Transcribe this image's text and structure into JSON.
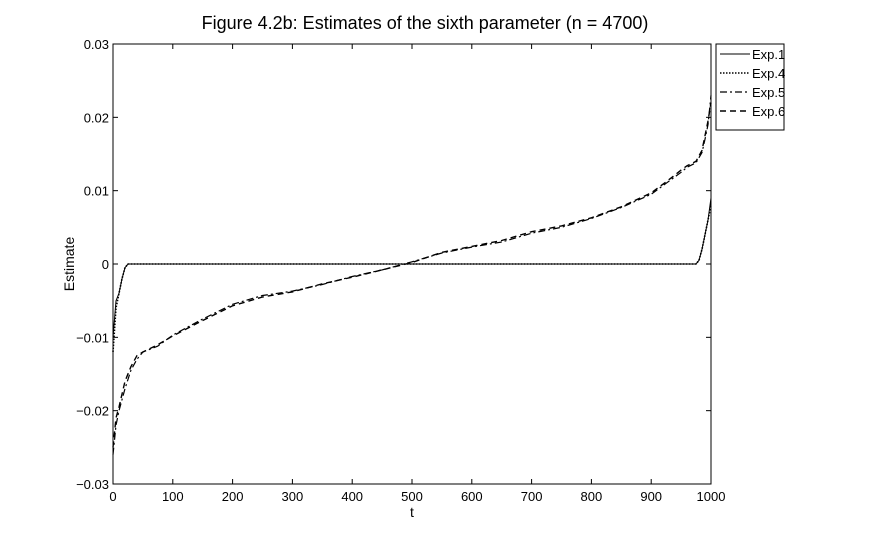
{
  "chart_data": {
    "type": "line",
    "title": "Figure 4.2b: Estimates of the sixth parameter (n = 4700)",
    "xlabel": "t",
    "ylabel": "Estimate",
    "xlim": [
      0,
      1000
    ],
    "ylim": [
      -0.03,
      0.03
    ],
    "xticks": [
      0,
      100,
      200,
      300,
      400,
      500,
      600,
      700,
      800,
      900,
      1000
    ],
    "xtick_labels": [
      "0",
      "100",
      "200",
      "300",
      "400",
      "500",
      "600",
      "700",
      "800",
      "900",
      "1000"
    ],
    "yticks": [
      -0.03,
      -0.02,
      -0.01,
      0,
      0.01,
      0.02,
      0.03
    ],
    "ytick_labels": [
      "−0.03",
      "−0.02",
      "−0.01",
      "0",
      "0.01",
      "0.02",
      "0.03"
    ],
    "grid": false,
    "legend_position": "outside-top-right",
    "series": [
      {
        "name": "Exp.1",
        "style": "solid",
        "x": [
          0,
          5,
          10,
          15,
          20,
          25,
          975,
          980,
          985,
          990,
          995,
          1000
        ],
        "y": [
          -0.01,
          -0.005,
          -0.004,
          -0.002,
          -0.0005,
          0,
          0,
          0.0005,
          0.002,
          0.004,
          0.006,
          0.009
        ]
      },
      {
        "name": "Exp.4",
        "style": "dotted",
        "x": [
          0,
          5,
          10,
          15,
          20,
          25,
          975,
          980,
          985,
          990,
          995,
          1000
        ],
        "y": [
          -0.012,
          -0.006,
          -0.004,
          -0.002,
          -0.0005,
          0,
          0,
          0.0005,
          0.002,
          0.004,
          0.006,
          0.008
        ]
      },
      {
        "name": "Exp.5",
        "style": "dashdot",
        "x": [
          0,
          5,
          10,
          20,
          30,
          40,
          50,
          75,
          100,
          150,
          200,
          250,
          300,
          350,
          400,
          450,
          500,
          550,
          600,
          650,
          700,
          750,
          800,
          850,
          900,
          925,
          950,
          960,
          975,
          985,
          990,
          995,
          1000
        ],
        "y": [
          -0.026,
          -0.022,
          -0.02,
          -0.017,
          -0.0145,
          -0.013,
          -0.012,
          -0.0112,
          -0.0097,
          -0.0075,
          -0.0055,
          -0.0043,
          -0.0037,
          -0.0028,
          -0.0017,
          -0.0008,
          0.0003,
          0.0015,
          0.0023,
          0.003,
          0.0042,
          0.005,
          0.0062,
          0.0077,
          0.0095,
          0.011,
          0.0125,
          0.0132,
          0.0138,
          0.0152,
          0.017,
          0.019,
          0.023
        ]
      },
      {
        "name": "Exp.6",
        "style": "dashed",
        "x": [
          0,
          5,
          10,
          20,
          30,
          40,
          50,
          75,
          100,
          150,
          200,
          250,
          300,
          350,
          400,
          450,
          500,
          550,
          600,
          650,
          700,
          750,
          800,
          850,
          900,
          925,
          950,
          960,
          975,
          985,
          990,
          995,
          1000
        ],
        "y": [
          -0.025,
          -0.021,
          -0.0195,
          -0.016,
          -0.014,
          -0.0125,
          -0.012,
          -0.011,
          -0.0098,
          -0.0077,
          -0.0057,
          -0.0045,
          -0.0038,
          -0.0027,
          -0.0018,
          -0.0008,
          0.0002,
          0.0016,
          0.0024,
          0.0032,
          0.0044,
          0.0052,
          0.0063,
          0.0078,
          0.0097,
          0.0112,
          0.0128,
          0.0134,
          0.014,
          0.0155,
          0.0175,
          0.0195,
          0.022
        ]
      }
    ]
  }
}
